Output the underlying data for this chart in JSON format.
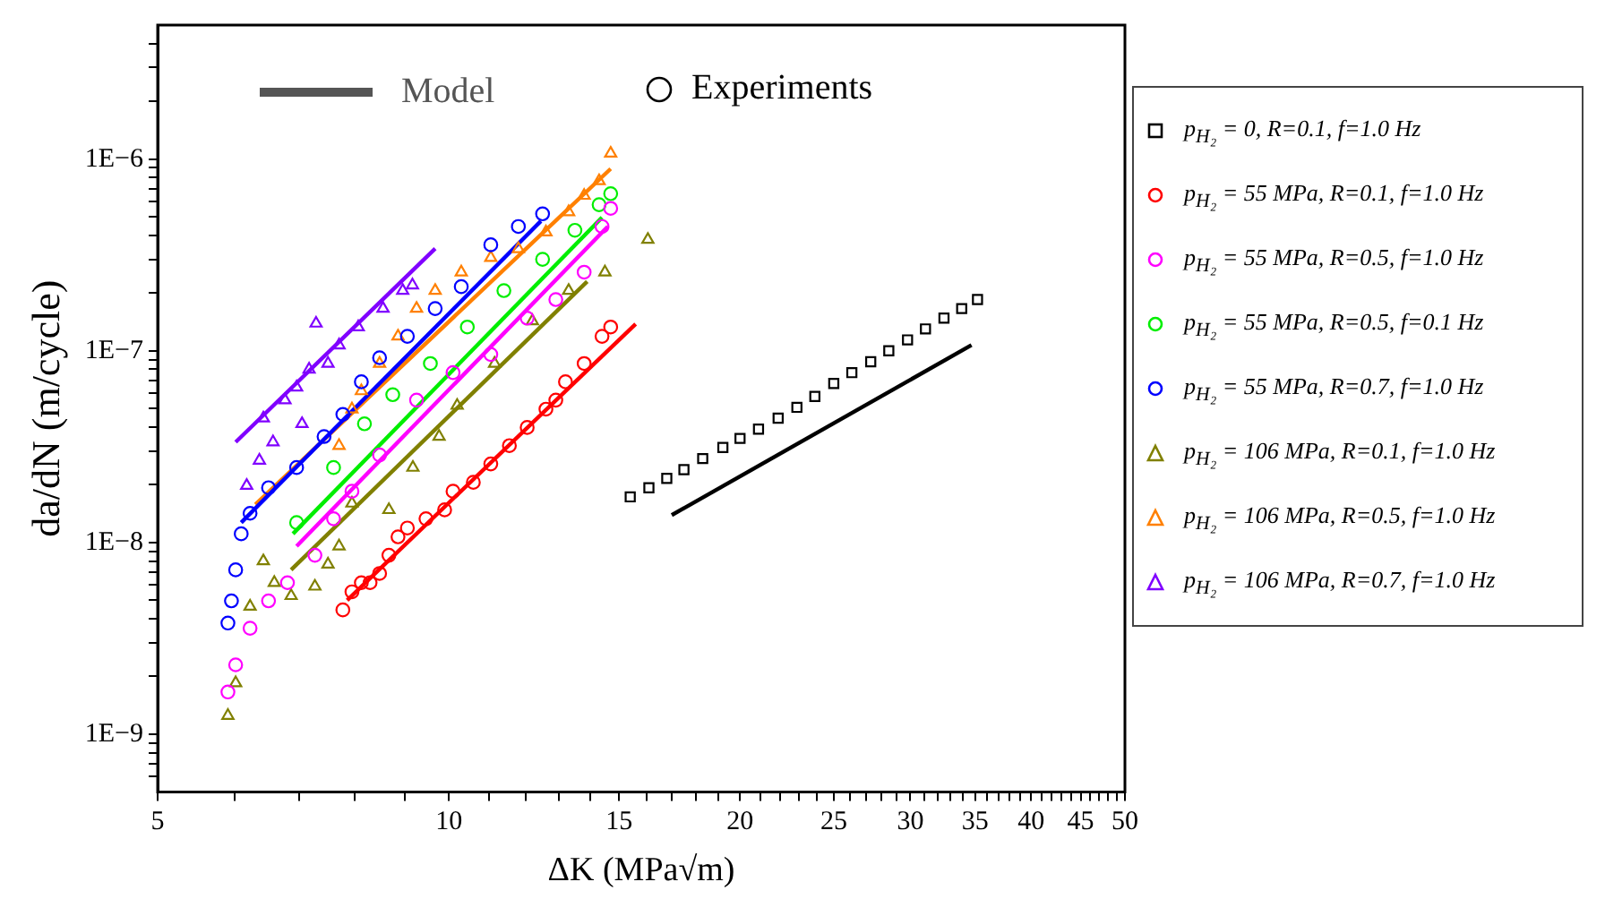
{
  "chart_data": {
    "type": "scatter",
    "xlabel": "ΔK (MPa√m)",
    "ylabel": "da/dN (m/cycle)",
    "log": "xy",
    "grid": false,
    "legend": "right",
    "annotations": [
      "Model",
      "Experiments"
    ],
    "xlim": [
      5,
      50
    ],
    "xticks": [
      5,
      {
        "value": 6,
        "label": null
      },
      {
        "value": 7,
        "label": null
      },
      {
        "value": 8,
        "label": null
      },
      {
        "value": 9,
        "label": null
      },
      10,
      {
        "value": 11,
        "label": null
      },
      {
        "value": 12,
        "label": null
      },
      {
        "value": 13,
        "label": null
      },
      {
        "value": 14,
        "label": null
      },
      15,
      {
        "value": 16,
        "label": null
      },
      {
        "value": 17,
        "label": null
      },
      {
        "value": 18,
        "label": null
      },
      {
        "value": 19,
        "label": null
      },
      20,
      {
        "value": 21,
        "label": null
      },
      {
        "value": 22,
        "label": null
      },
      {
        "value": 23,
        "label": null
      },
      {
        "value": 24,
        "label": null
      },
      25,
      {
        "value": 26,
        "label": null
      },
      {
        "value": 27,
        "label": null
      },
      {
        "value": 28,
        "label": null
      },
      {
        "value": 29,
        "label": null
      },
      30,
      {
        "value": 31,
        "label": null
      },
      {
        "value": 32,
        "label": null
      },
      {
        "value": 33,
        "label": null
      },
      {
        "value": 34,
        "label": null
      },
      35,
      {
        "value": 36,
        "label": null
      },
      {
        "value": 37,
        "label": null
      },
      {
        "value": 38,
        "label": null
      },
      {
        "value": 39,
        "label": null
      },
      40,
      {
        "value": 41,
        "label": null
      },
      {
        "value": 42,
        "label": null
      },
      {
        "value": 43,
        "label": null
      },
      {
        "value": 44,
        "label": null
      },
      45,
      {
        "value": 46,
        "label": null
      },
      {
        "value": 47,
        "label": null
      },
      {
        "value": 48,
        "label": null
      },
      {
        "value": 49,
        "label": null
      },
      50
    ],
    "ylim": [
      5e-10,
      5e-06
    ],
    "yticks": [
      {
        "value": 6e-10,
        "label": null
      },
      {
        "value": 7e-10,
        "label": null
      },
      {
        "value": 8e-10,
        "label": null
      },
      {
        "value": 9e-10,
        "label": null
      },
      {
        "value": 1e-09,
        "label": "1E−9"
      },
      {
        "value": 2e-09,
        "label": null
      },
      {
        "value": 3e-09,
        "label": null
      },
      {
        "value": 4e-09,
        "label": null
      },
      {
        "value": 5e-09,
        "label": null
      },
      {
        "value": 6e-09,
        "label": null
      },
      {
        "value": 7e-09,
        "label": null
      },
      {
        "value": 8e-09,
        "label": null
      },
      {
        "value": 9e-09,
        "label": null
      },
      {
        "value": 1e-08,
        "label": "1E−8"
      },
      {
        "value": 2e-08,
        "label": null
      },
      {
        "value": 3e-08,
        "label": null
      },
      {
        "value": 4e-08,
        "label": null
      },
      {
        "value": 5e-08,
        "label": null
      },
      {
        "value": 6e-08,
        "label": null
      },
      {
        "value": 7e-08,
        "label": null
      },
      {
        "value": 8e-08,
        "label": null
      },
      {
        "value": 9e-08,
        "label": null
      },
      {
        "value": 1e-07,
        "label": "1E−7"
      },
      {
        "value": 2e-07,
        "label": null
      },
      {
        "value": 3e-07,
        "label": null
      },
      {
        "value": 4e-07,
        "label": null
      },
      {
        "value": 5e-07,
        "label": null
      },
      {
        "value": 6e-07,
        "label": null
      },
      {
        "value": 7e-07,
        "label": null
      },
      {
        "value": 8e-07,
        "label": null
      },
      {
        "value": 9e-07,
        "label": null
      },
      {
        "value": 1e-06,
        "label": "1E−6"
      },
      {
        "value": 2e-06,
        "label": null
      },
      {
        "value": 3e-06,
        "label": null
      },
      {
        "value": 4e-06,
        "label": null
      }
    ],
    "series": [
      {
        "name": "p$_{H₂}$ = 0, R=0.1, f=1.0 Hz",
        "marker": "square",
        "color": "#000000",
        "x": [
          15.4,
          16.1,
          16.8,
          17.5,
          18.3,
          19.2,
          20.0,
          20.9,
          21.9,
          22.9,
          23.9,
          25.0,
          26.1,
          27.3,
          28.5,
          29.8,
          31.1,
          32.5,
          33.9,
          35.2
        ],
        "values": [
          1.73e-08,
          1.93e-08,
          2.16e-08,
          2.4e-08,
          2.74e-08,
          3.13e-08,
          3.49e-08,
          3.9e-08,
          4.45e-08,
          5.07e-08,
          5.78e-08,
          6.75e-08,
          7.69e-08,
          8.77e-08,
          1e-07,
          1.14e-07,
          1.3e-07,
          1.48e-07,
          1.66e-07,
          1.85e-07
        ]
      },
      {
        "name": "p$_{H₂}$ = 55 MPa, R=0.1, f=1.0 Hz",
        "marker": "circle",
        "color": "#ff0000",
        "x": [
          7.77,
          7.94,
          8.12,
          8.29,
          8.48,
          8.67,
          8.86,
          9.06,
          9.47,
          9.9,
          10.1,
          10.6,
          11.05,
          11.55,
          12.05,
          12.6,
          12.9,
          13.2,
          13.8,
          14.4,
          14.7
        ],
        "values": [
          4.45e-09,
          5.53e-09,
          6.17e-09,
          6.17e-09,
          6.89e-09,
          8.58e-09,
          1.07e-08,
          1.19e-08,
          1.33e-08,
          1.48e-08,
          1.85e-08,
          2.06e-08,
          2.57e-08,
          3.2e-08,
          3.98e-08,
          4.96e-08,
          5.53e-08,
          6.89e-08,
          8.58e-08,
          1.19e-07,
          1.33e-07
        ]
      },
      {
        "name": "p$_{H₂}$ = 55 MPa, R=0.5, f=1.0 Hz",
        "marker": "circle",
        "color": "#ff00ff",
        "x": [
          5.91,
          6.02,
          6.23,
          6.51,
          6.81,
          7.27,
          7.6,
          7.94,
          8.48,
          9.26,
          10.1,
          11.05,
          12.05,
          12.9,
          13.8,
          14.4,
          14.7
        ],
        "values": [
          1.66e-09,
          2.3e-09,
          3.57e-09,
          4.96e-09,
          6.17e-09,
          8.58e-09,
          1.33e-08,
          1.85e-08,
          2.86e-08,
          5.53e-08,
          7.69e-08,
          9.57e-08,
          1.48e-07,
          1.85e-07,
          2.57e-07,
          4.45e-07,
          5.53e-07
        ]
      },
      {
        "name": "p$_{H₂}$ = 55 MPa, R=0.5, f=0.1 Hz",
        "marker": "circle",
        "color": "#00ee00",
        "x": [
          6.96,
          7.6,
          8.18,
          8.75,
          9.57,
          10.45,
          11.4,
          12.5,
          13.5,
          14.3,
          14.7
        ],
        "values": [
          1.27e-08,
          2.46e-08,
          4.16e-08,
          5.9e-08,
          8.58e-08,
          1.33e-07,
          2.06e-07,
          3e-07,
          4.25e-07,
          5.78e-07,
          6.6e-07
        ]
      },
      {
        "name": "p$_{H₂}$ = 55 MPa, R=0.7, f=1.0 Hz",
        "marker": "circle",
        "color": "#0000ff",
        "x": [
          5.91,
          5.96,
          6.02,
          6.1,
          6.23,
          6.51,
          6.96,
          7.43,
          7.77,
          8.12,
          8.48,
          9.06,
          9.68,
          10.3,
          11.05,
          11.8,
          12.5
        ],
        "values": [
          3.8e-09,
          4.96e-09,
          7.2e-09,
          1.11e-08,
          1.42e-08,
          1.93e-08,
          2.46e-08,
          3.57e-08,
          4.66e-08,
          6.89e-08,
          9.2e-08,
          1.19e-07,
          1.66e-07,
          2.16e-07,
          3.57e-07,
          4.45e-07,
          5.18e-07
        ]
      },
      {
        "name": "p$_{H₂}$ = 106 MPa, R=0.1, f=1.0 Hz",
        "marker": "triangle",
        "color": "#808000",
        "x": [
          5.91,
          6.02,
          6.23,
          6.43,
          6.6,
          6.87,
          7.27,
          7.5,
          7.7,
          7.94,
          8.67,
          9.18,
          9.77,
          10.2,
          11.15,
          12.2,
          13.3,
          14.5,
          16.06
        ],
        "values": [
          1.25e-09,
          1.85e-09,
          4.64e-09,
          8e-09,
          6.17e-09,
          5.27e-09,
          5.9e-09,
          7.69e-09,
          9.57e-09,
          1.6e-08,
          1.48e-08,
          2.46e-08,
          3.57e-08,
          5.18e-08,
          8.58e-08,
          1.43e-07,
          2.06e-07,
          2.57e-07,
          3.8e-07
        ]
      },
      {
        "name": "p$_{H₂}$ = 106 MPa, R=0.5, f=1.0 Hz",
        "marker": "triangle",
        "color": "#ff8000",
        "x": [
          7.7,
          7.94,
          8.12,
          8.48,
          8.86,
          9.26,
          9.68,
          10.3,
          11.05,
          11.8,
          12.6,
          13.3,
          13.8,
          14.3,
          14.7
        ],
        "values": [
          3.2e-08,
          4.96e-08,
          6.17e-08,
          8.58e-08,
          1.19e-07,
          1.66e-07,
          2.06e-07,
          2.57e-07,
          3.06e-07,
          3.4e-07,
          4.16e-07,
          5.3e-07,
          6.45e-07,
          7.69e-07,
          1.07e-06
        ]
      },
      {
        "name": "p$_{H₂}$ = 106 MPa, R=0.7, f=1.0 Hz",
        "marker": "triangle",
        "color": "#8000ff",
        "x": [
          6.18,
          6.37,
          6.43,
          6.58,
          6.77,
          6.96,
          7.05,
          7.17,
          7.29,
          7.5,
          7.7,
          8.06,
          8.55,
          8.96,
          9.17
        ],
        "values": [
          1.98e-08,
          2.68e-08,
          4.45e-08,
          3.34e-08,
          5.53e-08,
          6.45e-08,
          4.16e-08,
          8e-08,
          1.39e-07,
          8.58e-08,
          1.07e-07,
          1.33e-07,
          1.66e-07,
          2.06e-07,
          2.2e-07
        ]
      },
      {
        "type": "line",
        "marker": "none",
        "color": "#000000",
        "x": [
          17.0,
          34.7
        ],
        "values": [
          1.39e-08,
          1.07e-07
        ]
      },
      {
        "type": "line",
        "marker": "none",
        "color": "#ff0000",
        "x": [
          7.85,
          15.6
        ],
        "values": [
          5e-09,
          1.38e-07
        ]
      },
      {
        "type": "line",
        "marker": "none",
        "color": "#ff00ff",
        "x": [
          6.96,
          14.6
        ],
        "values": [
          9.57e-09,
          4.45e-07
        ]
      },
      {
        "type": "line",
        "marker": "none",
        "color": "#00ee00",
        "x": [
          6.9,
          14.4
        ],
        "values": [
          1.11e-08,
          4.96e-07
        ]
      },
      {
        "type": "line",
        "marker": "none",
        "color": "#0000ff",
        "x": [
          6.1,
          12.45
        ],
        "values": [
          1.27e-08,
          4.75e-07
        ]
      },
      {
        "type": "line",
        "marker": "none",
        "color": "#808000",
        "x": [
          6.87,
          13.9
        ],
        "values": [
          7.2e-09,
          2.3e-07
        ]
      },
      {
        "type": "line",
        "marker": "none",
        "color": "#ff8000",
        "x": [
          6.31,
          14.7
        ],
        "values": [
          1.58e-08,
          8.9e-07
        ]
      },
      {
        "type": "line",
        "marker": "none",
        "color": "#8000ff",
        "x": [
          6.02,
          9.68
        ],
        "values": [
          3.34e-08,
          3.41e-07
        ]
      }
    ]
  }
}
